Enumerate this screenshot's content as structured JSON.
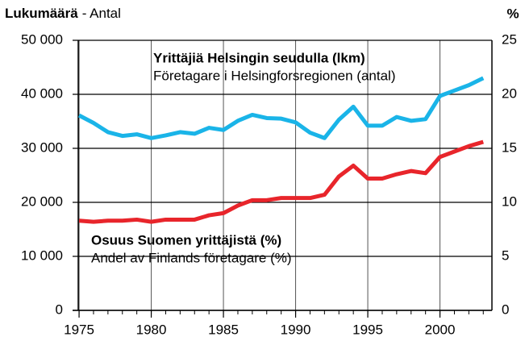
{
  "chart_data": {
    "type": "line",
    "y_label": "Lukumäärä",
    "y_label_sv": "- Antal",
    "y2_label": "%",
    "x": [
      1975,
      1976,
      1977,
      1978,
      1979,
      1980,
      1981,
      1982,
      1983,
      1984,
      1985,
      1986,
      1987,
      1988,
      1989,
      1990,
      1991,
      1992,
      1993,
      1994,
      1995,
      1996,
      1997,
      1998,
      1999,
      2000,
      2001,
      2002,
      2003
    ],
    "series": [
      {
        "name": "Yrittäjiä Helsingin seudulla (lkm)",
        "name_sv": "Företagare i Helsingforsregionen (antal)",
        "color": "#1ab4e8",
        "axis": "y",
        "values": [
          36100,
          34700,
          33000,
          32300,
          32600,
          31900,
          32400,
          33000,
          32700,
          33800,
          33400,
          35100,
          36200,
          35600,
          35500,
          34800,
          32900,
          31900,
          35300,
          37700,
          34200,
          34200,
          35800,
          35100,
          35400,
          39700,
          40700,
          41700,
          43000
        ]
      },
      {
        "name": "Osuus Suomen yrittäjistä (%)",
        "name_sv": "Andel av Finlands företagare (%)",
        "color": "#e8252b",
        "axis": "y2",
        "values": [
          8.3,
          8.2,
          8.3,
          8.3,
          8.4,
          8.2,
          8.4,
          8.4,
          8.4,
          8.8,
          9.0,
          9.7,
          10.2,
          10.2,
          10.4,
          10.4,
          10.4,
          10.7,
          12.4,
          13.4,
          12.2,
          12.2,
          12.6,
          12.9,
          12.7,
          14.2,
          14.7,
          15.2,
          15.6
        ]
      }
    ],
    "xlim": [
      1974.55,
      2003.6
    ],
    "xticks": [
      1975,
      1980,
      1985,
      1990,
      1995,
      2000
    ],
    "ylim": [
      0,
      50000
    ],
    "yticks": [
      0,
      {
        "value": 10000,
        "label": "10 000"
      },
      {
        "value": 20000,
        "label": "20 000"
      },
      {
        "value": 30000,
        "label": "30 000"
      },
      {
        "value": 40000,
        "label": "40 000"
      },
      {
        "value": 50000,
        "label": "50 000"
      }
    ],
    "y2lim": [
      0,
      25
    ],
    "y2ticks": [
      0,
      5,
      10,
      15,
      20,
      25
    ],
    "grid": true
  }
}
